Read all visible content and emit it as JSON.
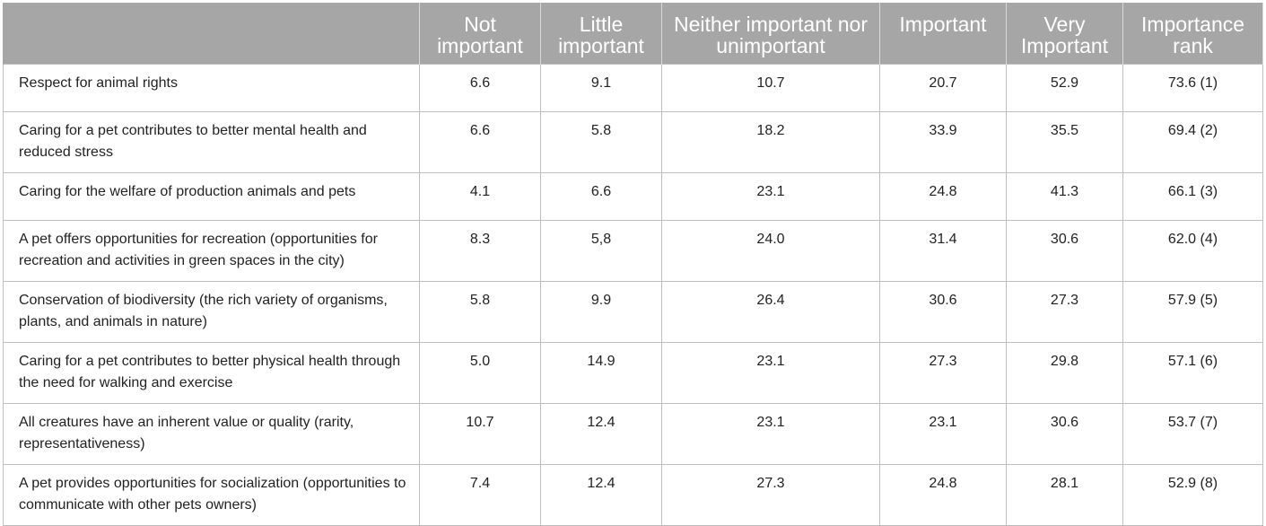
{
  "table": {
    "headers": [
      "",
      "Not important",
      "Little important",
      "Neither important nor unimportant",
      "Important",
      "Very Important",
      "Importance rank"
    ],
    "rows": [
      {
        "label": "Respect for animal rights",
        "cells": [
          "6.6",
          "9.1",
          "10.7",
          "20.7",
          "52.9",
          "73.6 (1)"
        ]
      },
      {
        "label": "Caring for a pet contributes to better mental health and reduced stress",
        "cells": [
          "6.6",
          "5.8",
          "18.2",
          "33.9",
          "35.5",
          "69.4 (2)"
        ]
      },
      {
        "label": "Caring for the welfare of production animals and pets",
        "cells": [
          "4.1",
          "6.6",
          "23.1",
          "24.8",
          "41.3",
          "66.1 (3)"
        ]
      },
      {
        "label": "A pet offers opportunities for recreation (opportunities for recreation and activities in green spaces in the city)",
        "cells": [
          "8.3",
          "5,8",
          "24.0",
          "31.4",
          "30.6",
          "62.0 (4)"
        ]
      },
      {
        "label": "Conservation of biodiversity (the rich variety of organisms, plants, and animals in nature)",
        "cells": [
          "5.8",
          "9.9",
          "26.4",
          "30.6",
          "27.3",
          "57.9 (5)"
        ]
      },
      {
        "label": "Caring for a pet contributes to better physical health through the need for walking and exercise",
        "cells": [
          "5.0",
          "14.9",
          "23.1",
          "27.3",
          "29.8",
          "57.1 (6)"
        ]
      },
      {
        "label": "All creatures have an inherent value or quality (rarity, representativeness)",
        "cells": [
          "10.7",
          "12.4",
          "23.1",
          "23.1",
          "30.6",
          "53.7 (7)"
        ]
      },
      {
        "label": "A pet provides opportunities for socialization (opportunities to communicate with other pets owners)",
        "cells": [
          "7.4",
          "12.4",
          "27.3",
          "24.8",
          "28.1",
          "52.9 (8)"
        ]
      }
    ]
  },
  "colors": {
    "header_bg": "#a6a6a6",
    "header_text": "#ffffff",
    "border": "#bfbfbf",
    "body_text": "#222222"
  }
}
